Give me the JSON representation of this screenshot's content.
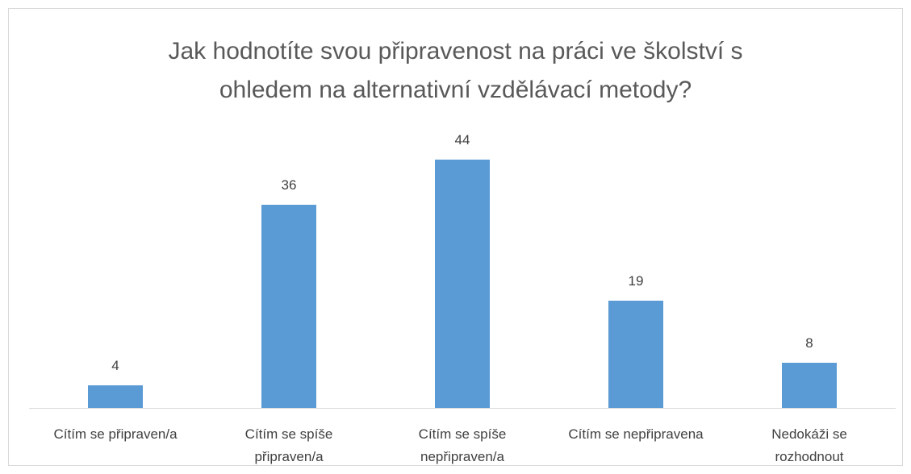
{
  "chart_data": {
    "type": "bar",
    "title": "Jak hodnotíte svou připravenost na práci ve školství s ohledem na alternativní vzdělávací metody?",
    "categories": [
      "Cítím se připraven/a",
      "Cítím se spíše připraven/a",
      "Cítím se spíše nepřipraven/a",
      "Cítím se nepřipravena",
      "Nedokáži se rozhodnout"
    ],
    "values": [
      4,
      36,
      44,
      19,
      8
    ],
    "color": "#5b9bd5"
  }
}
